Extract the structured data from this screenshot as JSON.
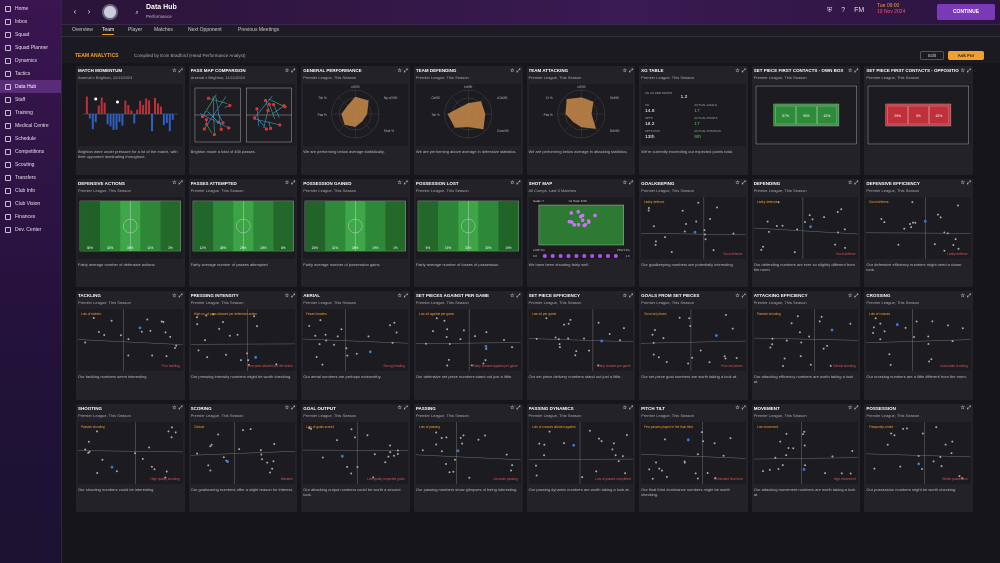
{
  "nav": [
    "Home",
    "Inbox",
    "Squad",
    "Squad Planner",
    "Dynamics",
    "Tactics",
    "Data Hub",
    "Staff",
    "Training",
    "Medical Centre",
    "Schedule",
    "Competitions",
    "Scouting",
    "Transfers",
    "Club Info",
    "Club Vision",
    "Finances",
    "Dev. Center"
  ],
  "top": {
    "title": "Data Hub",
    "sub": "Performance",
    "fm": "FM",
    "date1": "Tue 09:00",
    "date2": "19 Nov 2024",
    "continue": "CONTINUE"
  },
  "tabs": [
    "Overview",
    "Team",
    "Player",
    "Matches",
    "Next Opponent",
    "Previous Meetings"
  ],
  "header": {
    "title": "TEAM ANALYTICS",
    "sub": "Compiled by Eoin Bradford (Head Performance Analyst)",
    "edit": "Edit",
    "askfor": "Ask For"
  },
  "cards": [
    {
      "title": "MATCH MOMENTUM",
      "sub": "Arsenal v Brighton, 11/11/2024",
      "viz": "momentum",
      "desc": "Brighton were under pressure for a lot of the match, with their opponent dominating throughout."
    },
    {
      "title": "PASS MAP COMPARISON",
      "sub": "Arsenal v Brighton, 11/11/2024",
      "viz": "passmap",
      "desc": "Brighton made a total of 458 passes."
    },
    {
      "title": "GENERAL PERFORMANCE",
      "sub": "Premier League, This Season",
      "viz": "radar",
      "desc": "We are performing below average statistically.",
      "labels": [
        "xG/90",
        "Np-xG/90",
        "Shot %",
        "Tck %",
        "Pas %"
      ]
    },
    {
      "title": "TEAM DEFENDING",
      "sub": "Premier League, This Season",
      "viz": "radar",
      "desc": "We are performing above average in defensive statistics.",
      "labels": [
        "Int/90",
        "xGA/90",
        "Conc/90",
        "Clr/90",
        "Tck %"
      ]
    },
    {
      "title": "TEAM ATTACKING",
      "sub": "Premier League, This Season",
      "viz": "radar",
      "desc": "We are performing below average in attacking statistics.",
      "labels": [
        "xG/90",
        "Sht/90",
        "Drb/90",
        "Cr %",
        "Pas %"
      ]
    },
    {
      "title": "XG TABLE",
      "sub": "Premier League, This Season",
      "viz": "xgtable",
      "desc": "We're currently exceeding our expected points total.",
      "xg": {
        "xgpm_l": "XG XG PER MATCH",
        "xgpm": "1.2",
        "xg_l": "XG",
        "xg": "14.8",
        "ag_l": "ACTUAL GOALS",
        "ag": "17",
        "xpts_l": "XPTS",
        "xpts": "18.2",
        "ap_l": "ACTUAL POINTS",
        "ap": "17",
        "xpos_l": "XPTS POS",
        "xpos": "13th",
        "apos_l": "ACTUAL POSITION",
        "apos": "9th"
      }
    },
    {
      "title": "SET PIECE FIRST CONTACTS - OWN BOX",
      "sub": "Premier League, This Season",
      "viz": "boxg",
      "desc": "",
      "pct": [
        "67%",
        "90%",
        "62%"
      ]
    },
    {
      "title": "SET PIECE FIRST CONTACTS - OPPOSITION BOX",
      "sub": "Premier League, This Season",
      "viz": "boxr",
      "desc": "",
      "pct": [
        "29%",
        "3%",
        "62%"
      ]
    },
    {
      "title": "DEFENSIVE ACTIONS",
      "sub": "Premier League, This Season",
      "viz": "pitch",
      "desc": "Fairly average number of defensive actions.",
      "pct": [
        "30%",
        "33%",
        "38%",
        "11%",
        "3%"
      ]
    },
    {
      "title": "PASSES ATTEMPTED",
      "sub": "Premier League, This Season",
      "viz": "pitch",
      "desc": "Fairly average number of passes attempted",
      "pct": [
        "12%",
        "38%",
        "28%",
        "18%",
        "8%"
      ]
    },
    {
      "title": "POSSESSION GAINED",
      "sub": "Premier League, This Season",
      "viz": "pitch",
      "desc": "Fairly average number of possession gains.",
      "pct": [
        "24%",
        "31%",
        "38%",
        "19%",
        "1%"
      ]
    },
    {
      "title": "POSSESSION LOST",
      "sub": "Premier League, This Season",
      "viz": "pitch",
      "desc": "Fairly average number of losses of possession.",
      "pct": [
        "5%",
        "15%",
        "31%",
        "30%",
        "19%"
      ]
    },
    {
      "title": "SHOT MAP",
      "sub": "All Comps, Last 5 Matches",
      "viz": "shotmap",
      "desc": "We have been shooting fairly well.",
      "sm": {
        "goals": "Goals: 7",
        "total": "xG Total: 8.09",
        "low": "LOW XG",
        "high": "HIGH XG",
        "min": "0.0",
        "max": "1.0"
      }
    },
    {
      "title": "GOALKEEPING",
      "sub": "Premier League, This Season",
      "viz": "scatter",
      "desc": "Our goalkeeping numbers are potentially interesting.",
      "ann": [
        "Leaky defence",
        "Good defence"
      ]
    },
    {
      "title": "DEFENDING",
      "sub": "Premier League, This Season",
      "viz": "scatter",
      "desc": "Our defending numbers are ever so slightly different from the norm.",
      "ann": [
        "Leaky defence",
        "Good defence"
      ]
    },
    {
      "title": "DEFENSIVE EFFICIENCY",
      "sub": "Premier League, This Season",
      "viz": "scatter",
      "desc": "Our defensive efficiency numbers might need a closer look.",
      "ann": [
        "Good defence",
        "Leaky defence"
      ]
    },
    {
      "title": "TACKLING",
      "sub": "Premier League, This Season",
      "viz": "scatter",
      "desc": "Our tackling numbers seem interesting",
      "ann": [
        "Lots of tackles",
        "Poor tackling"
      ]
    },
    {
      "title": "PRESSING INTENSITY",
      "sub": "Premier League, This Season",
      "viz": "scatter",
      "desc": "Our pressing intensity numbers might be worth checking.",
      "ann": [
        "High no. of pass allowed per defensive action",
        "Low pass allowed per def action"
      ]
    },
    {
      "title": "AERIAL",
      "sub": "Premier League, This Season",
      "viz": "scatter",
      "desc": "Our aerial numbers are perhaps noteworthy.",
      "ann": [
        "Fewer headers",
        "Strong heading"
      ]
    },
    {
      "title": "SET PIECES AGAINST PER GAME",
      "sub": "Premier League, This Season",
      "viz": "scatter",
      "desc": "Our defensive set piece numbers stand out just a little.",
      "ann": [
        "Low xA against per game",
        "Many crosses against per game"
      ]
    },
    {
      "title": "SET PIECE EFFICIENCY",
      "sub": "Premier League, This Season",
      "viz": "scatter",
      "desc": "Our set piece delivery numbers stand out just a little.",
      "ann": [
        "Low xA per game",
        "Many crosses per game"
      ]
    },
    {
      "title": "GOALS FROM SET PIECES",
      "sub": "Premier League, This Season",
      "viz": "scatter",
      "desc": "Our set piece goal numbers are worth taking a look at.",
      "ann": [
        "Good set pieces",
        "Poor set pieces"
      ]
    },
    {
      "title": "ATTACKING EFFICIENCY",
      "sub": "Premier League, This Season",
      "viz": "scatter",
      "desc": "Our attacking efficiency numbers are worth taking a look at.",
      "ann": [
        "Passive shooting",
        "Clinical shooting"
      ]
    },
    {
      "title": "CROSSING",
      "sub": "Premier League, This Season",
      "viz": "scatter",
      "desc": "Our crossing numbers are a little different from the norm.",
      "ann": [
        "Lots of crosses",
        "Inaccurate crossing"
      ]
    },
    {
      "title": "SHOOTING",
      "sub": "Premier League, This Season",
      "viz": "scatter",
      "desc": "Our shooting numbers could be interesting",
      "ann": [
        "Passive shooting",
        "High quality shooting"
      ]
    },
    {
      "title": "SCORING",
      "sub": "Premier League, This Season",
      "viz": "scatter",
      "desc": "Our goalscoring numbers offer a slight reason for interest.",
      "ann": [
        "Clinical",
        "Wasteful"
      ]
    },
    {
      "title": "GOAL OUTPUT",
      "sub": "Premier League, This Season",
      "viz": "scatter",
      "desc": "Our attacking output numbers could be worth a second look.",
      "ann": [
        "Lots of goals scored",
        "Low quality expected goals"
      ]
    },
    {
      "title": "PASSING",
      "sub": "Premier League, This Season",
      "viz": "scatter",
      "desc": "Our passing numbers show glimpses of being interesting.",
      "ann": [
        "Lots of passing",
        "Accurate passing"
      ]
    },
    {
      "title": "PASSING DYNAMICS",
      "sub": "Premier League, This Season",
      "viz": "scatter",
      "desc": "Our passing dynamic numbers are worth taking a look at.",
      "ann": [
        "Lots of crosses allowed against",
        "Lots of passes completed"
      ]
    },
    {
      "title": "PITCH TILT",
      "sub": "Premier League, This Season",
      "viz": "scatter",
      "desc": "Our final third dominance numbers might be worth checking.",
      "ann": [
        "Few passes played in the final third",
        "Dominated final third"
      ]
    },
    {
      "title": "MOVEMENT",
      "sub": "Premier League, This Season",
      "viz": "scatter",
      "desc": "Our attacking movement numbers are worth taking a look at.",
      "ann": [
        "Low movement",
        "High movement"
      ]
    },
    {
      "title": "POSSESSION",
      "sub": "Premier League, This Season",
      "viz": "scatter",
      "desc": "Our possession numbers might be worth checking.",
      "ann": [
        "Frequently ceded",
        "Sterile possession"
      ]
    }
  ],
  "colors": {
    "accent": "#f0a030",
    "purple": "#7a3ab8",
    "green": "#2e8b3a",
    "red": "#c0303a"
  }
}
